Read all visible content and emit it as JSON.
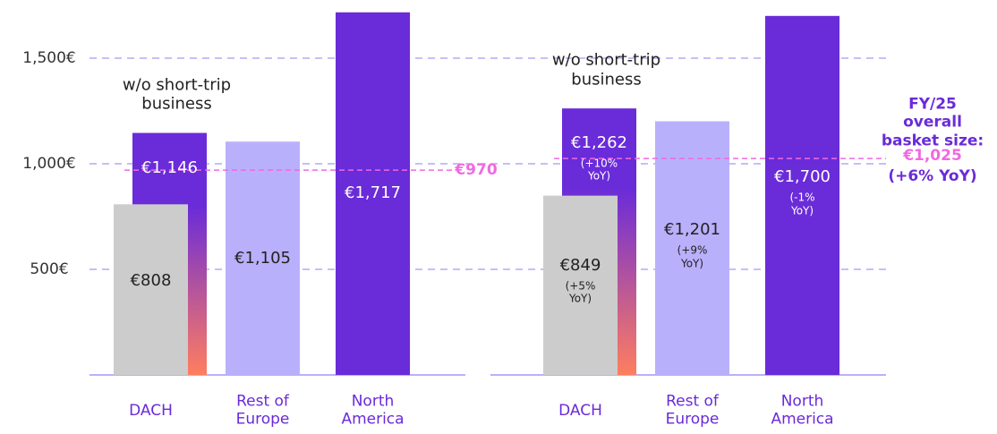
{
  "chart_data": [
    {
      "type": "bar",
      "categories": [
        "DACH",
        "Rest of Europe",
        "North America"
      ],
      "values": [
        1146,
        1105,
        1717
      ],
      "value_labels": [
        "€1,146",
        "€1,105",
        "€1,717"
      ],
      "colors": [
        "#6a2bd9",
        "#b9b0fb",
        "#6a2bd9"
      ],
      "subset": {
        "category": 0,
        "value": 808,
        "value_label": "€808",
        "color": "#cccccc",
        "gradient_to": "#ff7e5f",
        "annotation": "w/o short-trip business"
      },
      "reference": {
        "value": 970,
        "label": "€970",
        "color": "#f06ae0"
      },
      "ylim": [
        0,
        1750
      ],
      "yticks": [
        {
          "value": 500,
          "label": "500€"
        },
        {
          "value": 1000,
          "label": "1,000€"
        },
        {
          "value": 1500,
          "label": "1,500€"
        }
      ],
      "grid": true
    },
    {
      "type": "bar",
      "categories": [
        "DACH",
        "Rest of Europe",
        "North America"
      ],
      "values": [
        1262,
        1201,
        1700
      ],
      "value_labels": [
        "€1,262",
        "€1,201",
        "€1,700"
      ],
      "yoy_labels": [
        "(+10% YoY)",
        "(+9% YoY)",
        "(-1% YoY)"
      ],
      "colors": [
        "#6a2bd9",
        "#b9b0fb",
        "#6a2bd9"
      ],
      "subset": {
        "category": 0,
        "value": 849,
        "value_label": "€849",
        "yoy_label": "(+5% YoY)",
        "color": "#cccccc",
        "gradient_to": "#ff7e5f",
        "annotation": "w/o short-trip business"
      },
      "reference": {
        "value": 1025,
        "label": "€1,025",
        "title": "FY/25 overall basket size:",
        "note": "(+6% YoY)",
        "color": "#f06ae0"
      },
      "ylim": [
        0,
        1750
      ]
    }
  ]
}
